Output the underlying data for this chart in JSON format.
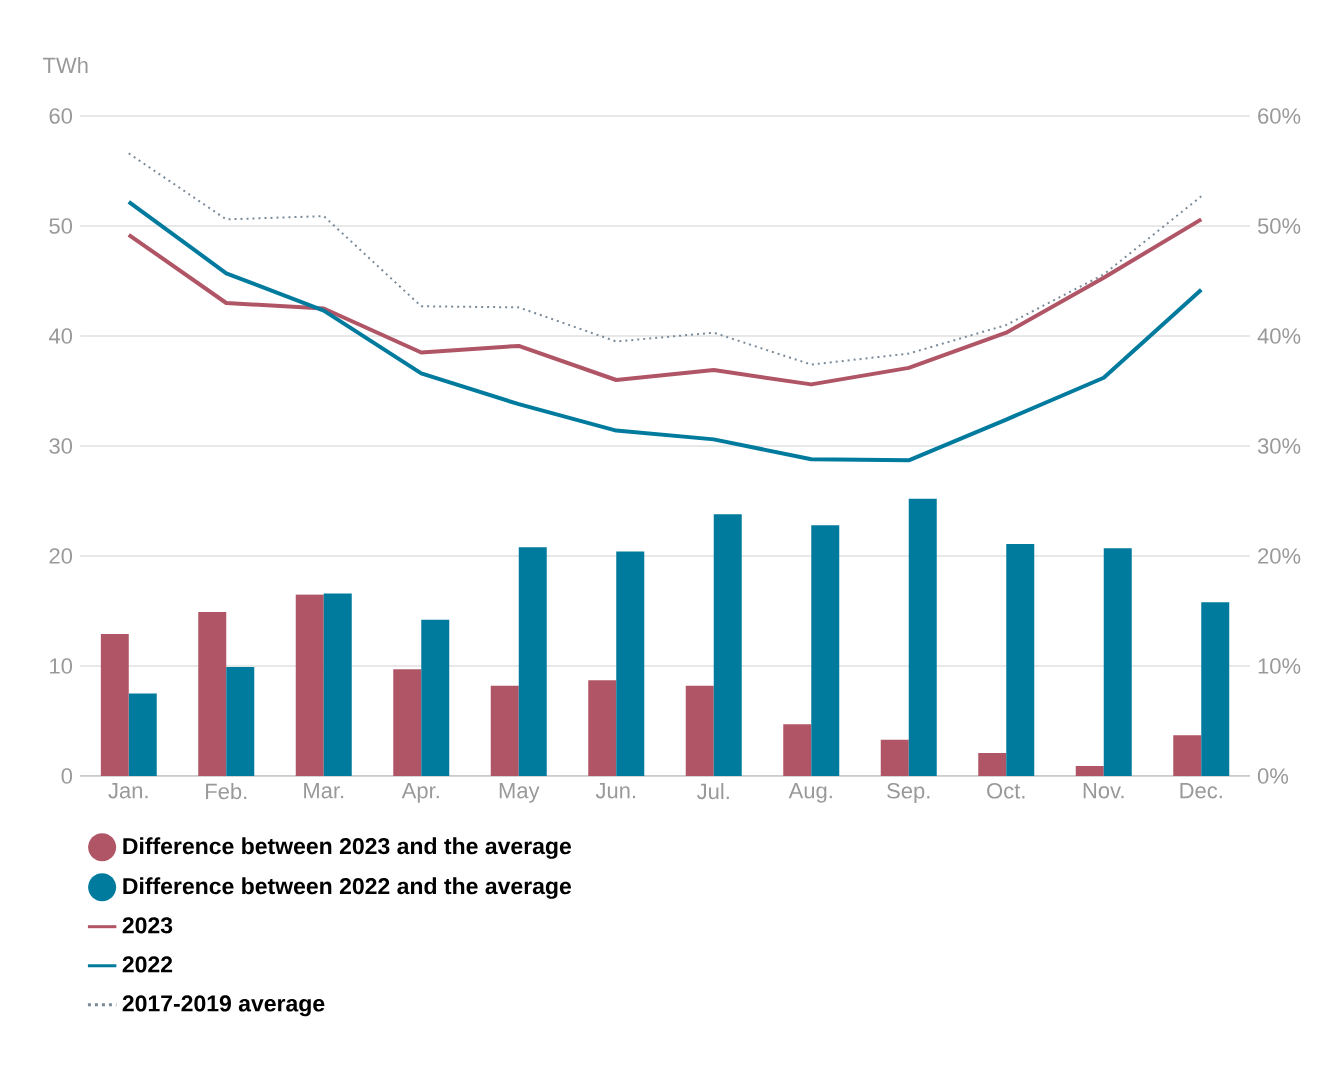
{
  "chart_data": {
    "type": "line",
    "ylabel": "TWh",
    "categories": [
      "Jan.",
      "Feb.",
      "Mar.",
      "Apr.",
      "May",
      "Jun.",
      "Jul.",
      "Aug.",
      "Sep.",
      "Oct.",
      "Nov.",
      "Dec."
    ],
    "ylim": [
      0,
      60
    ],
    "yticks": [
      0,
      10,
      20,
      30,
      40,
      50,
      60
    ],
    "y2lim": [
      0,
      60
    ],
    "y2ticks": [
      {
        "value": 0,
        "label": "0%"
      },
      {
        "value": 10,
        "label": "10%"
      },
      {
        "value": 20,
        "label": "20%"
      },
      {
        "value": 30,
        "label": "30%"
      },
      {
        "value": 40,
        "label": "40%"
      },
      {
        "value": 50,
        "label": "50%"
      },
      {
        "value": 60,
        "label": "60%"
      }
    ],
    "grid": "y",
    "legend": "bottom",
    "series": [
      {
        "name": "Difference between 2023 and the average",
        "type": "bar",
        "axis": "y2",
        "color": "#b05566",
        "values": [
          12.9,
          14.9,
          16.5,
          9.7,
          8.2,
          8.7,
          8.2,
          4.7,
          3.3,
          2.1,
          0.9,
          3.7
        ]
      },
      {
        "name": "Difference between 2022 and the average",
        "type": "bar",
        "axis": "y2",
        "color": "#007b9e",
        "values": [
          7.5,
          9.9,
          16.6,
          14.2,
          20.8,
          20.4,
          23.8,
          22.8,
          25.2,
          21.1,
          20.7,
          15.8
        ]
      },
      {
        "name": "2023",
        "color": "#b05566",
        "line_style": "solid",
        "values": [
          49.2,
          43.0,
          42.5,
          38.5,
          39.1,
          36.0,
          36.9,
          35.6,
          37.1,
          40.3,
          45.3,
          50.6
        ]
      },
      {
        "name": "2022",
        "color": "#007b9e",
        "line_style": "solid",
        "values": [
          52.2,
          45.7,
          42.3,
          36.6,
          33.8,
          31.4,
          30.6,
          28.8,
          28.7,
          32.4,
          36.2,
          44.2
        ]
      },
      {
        "name": "2017-2019 average",
        "color": "#7a8a99",
        "line_style": "dotted",
        "values": [
          56.6,
          50.6,
          50.9,
          42.7,
          42.6,
          39.5,
          40.3,
          37.4,
          38.4,
          41.0,
          45.6,
          52.7
        ]
      }
    ]
  }
}
